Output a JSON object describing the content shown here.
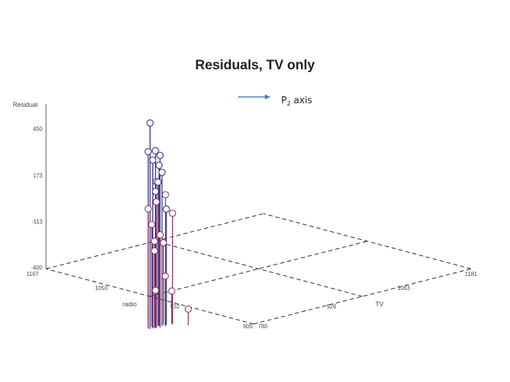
{
  "chart_data": {
    "type": "scatter",
    "title": "Residuals, TV only",
    "zlabel": "Residual",
    "xlabel": "TV",
    "ylabel": "radio",
    "z_ticks": [
      "450",
      "173",
      "-113",
      "-400"
    ],
    "x_ticks": [
      "780",
      "926",
      "1063",
      "1181"
    ],
    "y_ticks": [
      "605",
      "932",
      "1050",
      "1167"
    ],
    "zlim": [
      -400,
      450
    ],
    "xlim": [
      780,
      1181
    ],
    "ylim": [
      605,
      1167
    ],
    "grid": true,
    "annotation": {
      "text": "axis",
      "subscript_base": "P",
      "subscript": "2"
    },
    "points": [
      {
        "x": 790,
        "y": 900,
        "z": 480,
        "color": "#2a2a7a"
      },
      {
        "x": 790,
        "y": 905,
        "z": 330,
        "color": "#2a2a7a"
      },
      {
        "x": 800,
        "y": 900,
        "z": 330,
        "color": "#2a2a7a"
      },
      {
        "x": 805,
        "y": 895,
        "z": 305,
        "color": "#2a2a7a"
      },
      {
        "x": 795,
        "y": 900,
        "z": 285,
        "color": "#2a2a7a"
      },
      {
        "x": 810,
        "y": 905,
        "z": 245,
        "color": "#2a2a7a"
      },
      {
        "x": 812,
        "y": 900,
        "z": 210,
        "color": "#3a3a8a"
      },
      {
        "x": 798,
        "y": 895,
        "z": 175,
        "color": "#7a3a7a"
      },
      {
        "x": 808,
        "y": 905,
        "z": 160,
        "color": "#2a2a7a"
      },
      {
        "x": 800,
        "y": 900,
        "z": 120,
        "color": "#2a2a7a"
      },
      {
        "x": 815,
        "y": 895,
        "z": 95,
        "color": "#7a3a7a"
      },
      {
        "x": 805,
        "y": 905,
        "z": 60,
        "color": "#8a2a5a"
      },
      {
        "x": 790,
        "y": 905,
        "z": 35,
        "color": "#8a2a5a"
      },
      {
        "x": 820,
        "y": 900,
        "z": 15,
        "color": "#2a2a7a"
      },
      {
        "x": 828,
        "y": 895,
        "z": -10,
        "color": "#8a2a5a"
      },
      {
        "x": 800,
        "y": 910,
        "z": -55,
        "color": "#8a2a5a"
      },
      {
        "x": 812,
        "y": 905,
        "z": -115,
        "color": "#8a2a5a"
      },
      {
        "x": 798,
        "y": 900,
        "z": -135,
        "color": "#8a2a5a"
      },
      {
        "x": 818,
        "y": 905,
        "z": -160,
        "color": "#8a2a5a"
      },
      {
        "x": 805,
        "y": 910,
        "z": -195,
        "color": "#8a2a5a"
      },
      {
        "x": 818,
        "y": 900,
        "z": -330,
        "color": "#8a2a5a"
      },
      {
        "x": 800,
        "y": 900,
        "z": -390,
        "color": "#8a2a5a"
      },
      {
        "x": 830,
        "y": 900,
        "z": -415,
        "color": "#8a2a5a"
      },
      {
        "x": 840,
        "y": 870,
        "z": -500,
        "color": "#8a2a5a"
      }
    ]
  }
}
